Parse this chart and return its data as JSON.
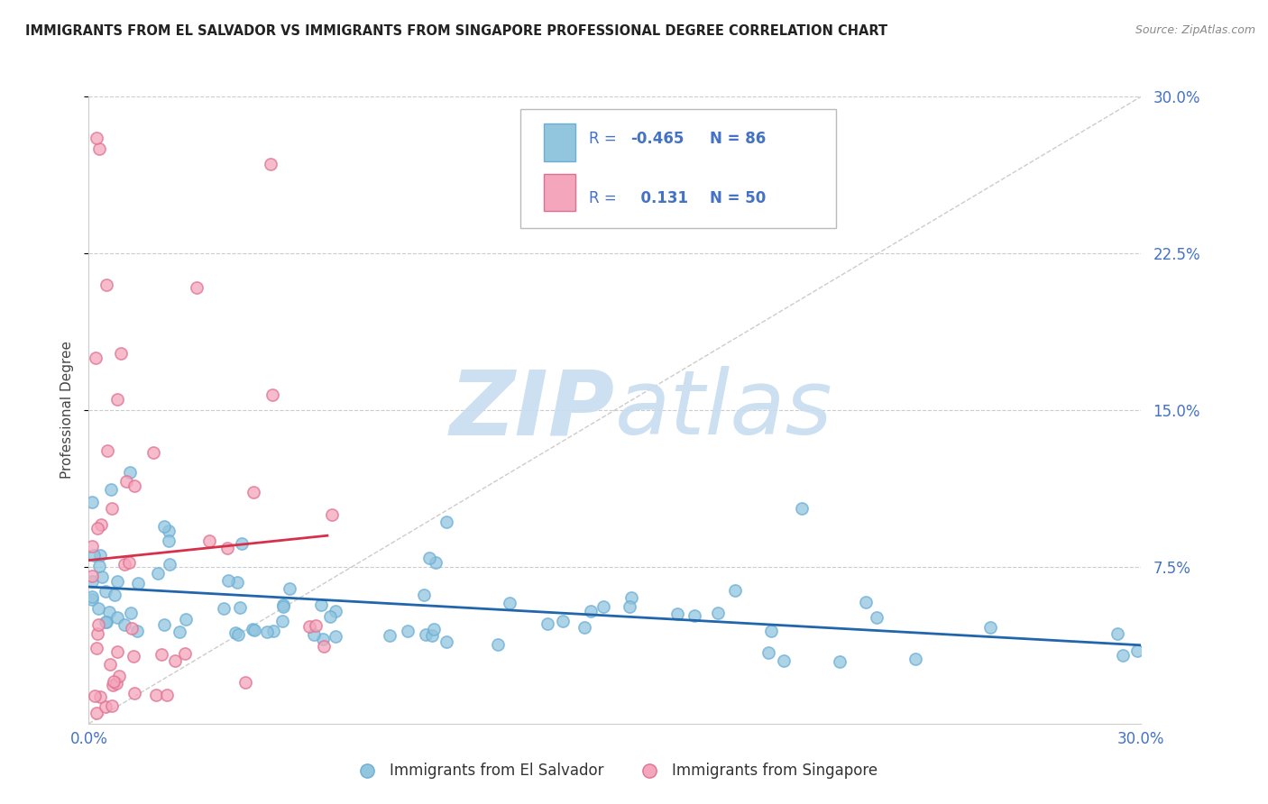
{
  "title": "IMMIGRANTS FROM EL SALVADOR VS IMMIGRANTS FROM SINGAPORE PROFESSIONAL DEGREE CORRELATION CHART",
  "source": "Source: ZipAtlas.com",
  "ylabel": "Professional Degree",
  "xmin": 0.0,
  "xmax": 0.3,
  "ymin": 0.0,
  "ymax": 0.3,
  "blue_color": "#92c5de",
  "blue_edge_color": "#6baed6",
  "pink_color": "#f4a6bc",
  "pink_edge_color": "#e07090",
  "blue_line_color": "#2166ac",
  "pink_line_color": "#d6304a",
  "grid_color": "#cccccc",
  "tick_color": "#4472c4",
  "legend_R_blue": "-0.465",
  "legend_N_blue": "86",
  "legend_R_pink": "0.131",
  "legend_N_pink": "50",
  "watermark_zip_color": "#c8ddf0",
  "watermark_atlas_color": "#c8ddf0",
  "background_color": "#ffffff"
}
